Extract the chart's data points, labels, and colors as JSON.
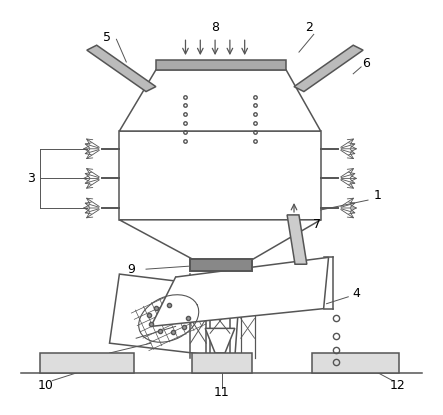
{
  "bg_color": "#ffffff",
  "line_color": "#555555",
  "line_width": 1.1,
  "dark_color": "#333333",
  "gray_color": "#aaaaaa",
  "light_gray": "#cccccc"
}
